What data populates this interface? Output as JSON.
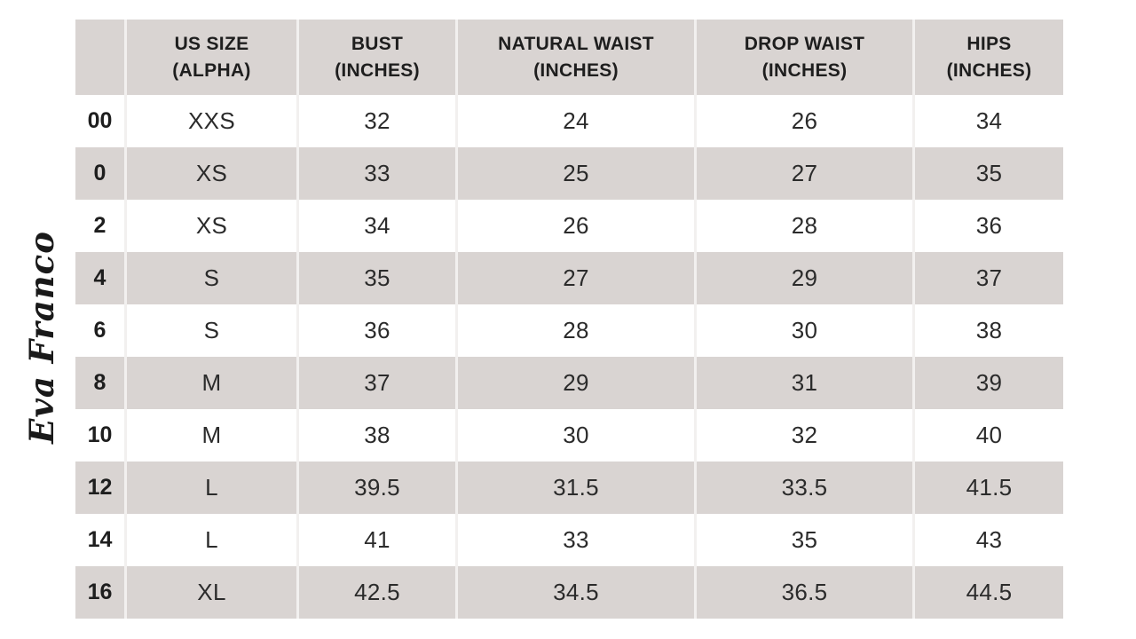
{
  "logo": {
    "text": "Eva Franco"
  },
  "table": {
    "headers": [
      {
        "line1": "US SIZE",
        "line2": "(ALPHA)"
      },
      {
        "line1": "BUST",
        "line2": "(INCHES)"
      },
      {
        "line1": "NATURAL WAIST",
        "line2": "(INCHES)"
      },
      {
        "line1": "DROP WAIST",
        "line2": "(INCHES)"
      },
      {
        "line1": "HIPS",
        "line2": "(INCHES)"
      }
    ],
    "rows": [
      {
        "size": "00",
        "alpha": "XXS",
        "bust": "32",
        "natural_waist": "24",
        "drop_waist": "26",
        "hips": "34"
      },
      {
        "size": "0",
        "alpha": "XS",
        "bust": "33",
        "natural_waist": "25",
        "drop_waist": "27",
        "hips": "35"
      },
      {
        "size": "2",
        "alpha": "XS",
        "bust": "34",
        "natural_waist": "26",
        "drop_waist": "28",
        "hips": "36"
      },
      {
        "size": "4",
        "alpha": "S",
        "bust": "35",
        "natural_waist": "27",
        "drop_waist": "29",
        "hips": "37"
      },
      {
        "size": "6",
        "alpha": "S",
        "bust": "36",
        "natural_waist": "28",
        "drop_waist": "30",
        "hips": "38"
      },
      {
        "size": "8",
        "alpha": "M",
        "bust": "37",
        "natural_waist": "29",
        "drop_waist": "31",
        "hips": "39"
      },
      {
        "size": "10",
        "alpha": "M",
        "bust": "38",
        "natural_waist": "30",
        "drop_waist": "32",
        "hips": "40"
      },
      {
        "size": "12",
        "alpha": "L",
        "bust": "39.5",
        "natural_waist": "31.5",
        "drop_waist": "33.5",
        "hips": "41.5"
      },
      {
        "size": "14",
        "alpha": "L",
        "bust": "41",
        "natural_waist": "33",
        "drop_waist": "35",
        "hips": "43"
      },
      {
        "size": "16",
        "alpha": "XL",
        "bust": "42.5",
        "natural_waist": "34.5",
        "drop_waist": "36.5",
        "hips": "44.5"
      }
    ]
  },
  "colors": {
    "row_shaded_bg": "#d9d4d2",
    "row_plain_bg": "#ffffff",
    "column_divider": "#f2f0ef",
    "header_text": "#1e1e1e",
    "cell_text": "#2b2b2b",
    "logo_ink": "#191919"
  }
}
